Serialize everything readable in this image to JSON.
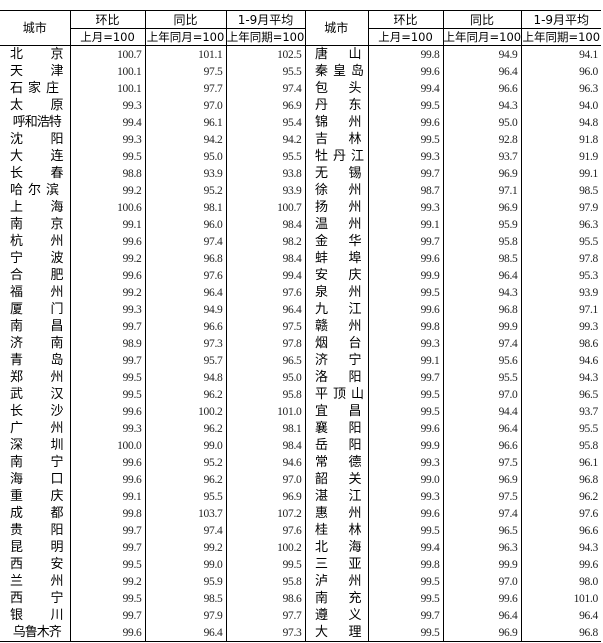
{
  "header": {
    "city": "城市",
    "mom": "环比",
    "mom_base": "上月=100",
    "yoy": "同比",
    "yoy_base": "上年同月=100",
    "avg": "1-9月平均",
    "avg_base": "上年同期=100"
  },
  "left": [
    {
      "city": "北京",
      "mom": "100.7",
      "yoy": "101.1",
      "avg": "102.5"
    },
    {
      "city": "天津",
      "mom": "100.1",
      "yoy": "97.5",
      "avg": "95.5"
    },
    {
      "city": "石家庄",
      "mom": "100.1",
      "yoy": "97.7",
      "avg": "97.4"
    },
    {
      "city": "太原",
      "mom": "99.3",
      "yoy": "97.0",
      "avg": "96.9"
    },
    {
      "city": "呼和浩特",
      "mom": "99.4",
      "yoy": "96.1",
      "avg": "95.4"
    },
    {
      "city": "沈阳",
      "mom": "99.3",
      "yoy": "94.2",
      "avg": "94.2"
    },
    {
      "city": "大连",
      "mom": "99.5",
      "yoy": "95.0",
      "avg": "95.5"
    },
    {
      "city": "长春",
      "mom": "98.8",
      "yoy": "93.9",
      "avg": "93.8"
    },
    {
      "city": "哈尔滨",
      "mom": "99.2",
      "yoy": "95.2",
      "avg": "93.9"
    },
    {
      "city": "上海",
      "mom": "100.6",
      "yoy": "98.1",
      "avg": "100.7"
    },
    {
      "city": "南京",
      "mom": "99.1",
      "yoy": "96.0",
      "avg": "98.4"
    },
    {
      "city": "杭州",
      "mom": "99.6",
      "yoy": "97.4",
      "avg": "98.2"
    },
    {
      "city": "宁波",
      "mom": "99.2",
      "yoy": "96.8",
      "avg": "98.4"
    },
    {
      "city": "合肥",
      "mom": "99.6",
      "yoy": "97.6",
      "avg": "99.4"
    },
    {
      "city": "福州",
      "mom": "99.2",
      "yoy": "96.4",
      "avg": "97.6"
    },
    {
      "city": "厦门",
      "mom": "99.3",
      "yoy": "94.9",
      "avg": "96.4"
    },
    {
      "city": "南昌",
      "mom": "99.7",
      "yoy": "96.6",
      "avg": "97.5"
    },
    {
      "city": "济南",
      "mom": "98.9",
      "yoy": "97.3",
      "avg": "97.8"
    },
    {
      "city": "青岛",
      "mom": "99.7",
      "yoy": "95.7",
      "avg": "96.5"
    },
    {
      "city": "郑州",
      "mom": "99.5",
      "yoy": "94.8",
      "avg": "95.0"
    },
    {
      "city": "武汉",
      "mom": "99.5",
      "yoy": "96.2",
      "avg": "95.8"
    },
    {
      "city": "长沙",
      "mom": "99.6",
      "yoy": "100.2",
      "avg": "101.0"
    },
    {
      "city": "广州",
      "mom": "99.3",
      "yoy": "96.2",
      "avg": "98.1"
    },
    {
      "city": "深圳",
      "mom": "100.0",
      "yoy": "99.0",
      "avg": "98.4"
    },
    {
      "city": "南宁",
      "mom": "99.6",
      "yoy": "95.2",
      "avg": "94.6"
    },
    {
      "city": "海口",
      "mom": "99.6",
      "yoy": "96.2",
      "avg": "97.0"
    },
    {
      "city": "重庆",
      "mom": "99.1",
      "yoy": "95.5",
      "avg": "96.9"
    },
    {
      "city": "成都",
      "mom": "99.8",
      "yoy": "103.7",
      "avg": "107.2"
    },
    {
      "city": "贵阳",
      "mom": "99.7",
      "yoy": "97.4",
      "avg": "97.6"
    },
    {
      "city": "昆明",
      "mom": "99.7",
      "yoy": "99.2",
      "avg": "100.2"
    },
    {
      "city": "西安",
      "mom": "99.5",
      "yoy": "99.0",
      "avg": "99.5"
    },
    {
      "city": "兰州",
      "mom": "99.2",
      "yoy": "95.9",
      "avg": "95.8"
    },
    {
      "city": "西宁",
      "mom": "99.5",
      "yoy": "98.5",
      "avg": "98.6"
    },
    {
      "city": "银川",
      "mom": "99.7",
      "yoy": "97.9",
      "avg": "97.7"
    },
    {
      "city": "乌鲁木齐",
      "mom": "99.6",
      "yoy": "96.4",
      "avg": "97.3"
    }
  ],
  "right": [
    {
      "city": "唐山",
      "mom": "99.8",
      "yoy": "94.9",
      "avg": "94.1"
    },
    {
      "city": "秦皇岛",
      "mom": "99.6",
      "yoy": "96.4",
      "avg": "96.0"
    },
    {
      "city": "包头",
      "mom": "99.4",
      "yoy": "96.6",
      "avg": "96.3"
    },
    {
      "city": "丹东",
      "mom": "99.5",
      "yoy": "94.3",
      "avg": "94.0"
    },
    {
      "city": "锦州",
      "mom": "99.6",
      "yoy": "95.0",
      "avg": "94.8"
    },
    {
      "city": "吉林",
      "mom": "99.5",
      "yoy": "92.8",
      "avg": "91.8"
    },
    {
      "city": "牡丹江",
      "mom": "99.3",
      "yoy": "93.7",
      "avg": "91.9"
    },
    {
      "city": "无锡",
      "mom": "99.7",
      "yoy": "96.9",
      "avg": "99.1"
    },
    {
      "city": "徐州",
      "mom": "98.7",
      "yoy": "97.1",
      "avg": "98.5"
    },
    {
      "city": "扬州",
      "mom": "99.3",
      "yoy": "96.9",
      "avg": "97.9"
    },
    {
      "city": "温州",
      "mom": "99.1",
      "yoy": "95.9",
      "avg": "96.3"
    },
    {
      "city": "金华",
      "mom": "99.7",
      "yoy": "95.8",
      "avg": "95.5"
    },
    {
      "city": "蚌埠",
      "mom": "99.6",
      "yoy": "98.5",
      "avg": "97.8"
    },
    {
      "city": "安庆",
      "mom": "99.9",
      "yoy": "96.4",
      "avg": "95.3"
    },
    {
      "city": "泉州",
      "mom": "99.5",
      "yoy": "94.3",
      "avg": "93.9"
    },
    {
      "city": "九江",
      "mom": "99.6",
      "yoy": "96.8",
      "avg": "97.1"
    },
    {
      "city": "赣州",
      "mom": "99.8",
      "yoy": "99.9",
      "avg": "99.3"
    },
    {
      "city": "烟台",
      "mom": "99.3",
      "yoy": "97.4",
      "avg": "98.6"
    },
    {
      "city": "济宁",
      "mom": "99.1",
      "yoy": "95.6",
      "avg": "94.6"
    },
    {
      "city": "洛阳",
      "mom": "99.7",
      "yoy": "95.5",
      "avg": "94.3"
    },
    {
      "city": "平顶山",
      "mom": "99.5",
      "yoy": "97.0",
      "avg": "96.5"
    },
    {
      "city": "宜昌",
      "mom": "99.5",
      "yoy": "94.4",
      "avg": "93.7"
    },
    {
      "city": "襄阳",
      "mom": "99.6",
      "yoy": "96.4",
      "avg": "95.5"
    },
    {
      "city": "岳阳",
      "mom": "99.9",
      "yoy": "96.6",
      "avg": "95.8"
    },
    {
      "city": "常德",
      "mom": "99.3",
      "yoy": "97.5",
      "avg": "96.1"
    },
    {
      "city": "韶关",
      "mom": "99.0",
      "yoy": "96.9",
      "avg": "96.8"
    },
    {
      "city": "湛江",
      "mom": "99.3",
      "yoy": "97.5",
      "avg": "96.2"
    },
    {
      "city": "惠州",
      "mom": "99.6",
      "yoy": "97.4",
      "avg": "97.6"
    },
    {
      "city": "桂林",
      "mom": "99.5",
      "yoy": "96.5",
      "avg": "96.6"
    },
    {
      "city": "北海",
      "mom": "99.4",
      "yoy": "96.3",
      "avg": "94.3"
    },
    {
      "city": "三亚",
      "mom": "99.8",
      "yoy": "99.9",
      "avg": "99.6"
    },
    {
      "city": "泸州",
      "mom": "99.5",
      "yoy": "97.0",
      "avg": "98.0"
    },
    {
      "city": "南充",
      "mom": "99.5",
      "yoy": "99.6",
      "avg": "101.0"
    },
    {
      "city": "遵义",
      "mom": "99.7",
      "yoy": "96.4",
      "avg": "96.4"
    },
    {
      "city": "大理",
      "mom": "99.5",
      "yoy": "96.9",
      "avg": "96.8"
    }
  ]
}
